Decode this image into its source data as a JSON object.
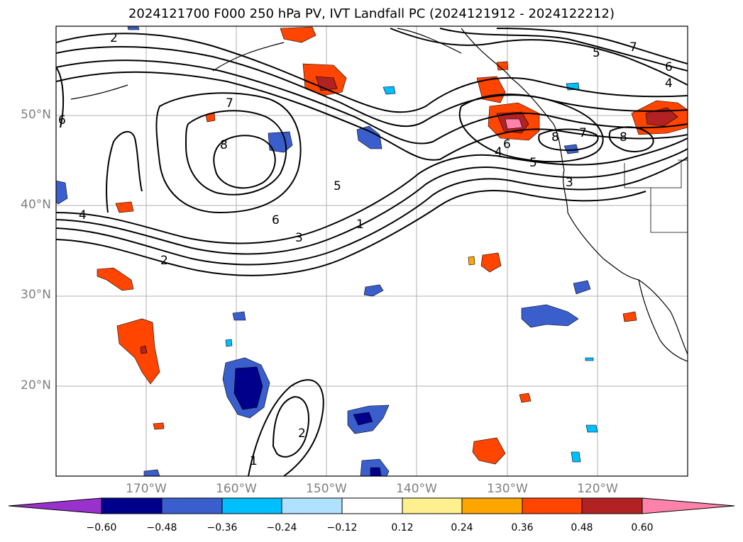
{
  "title": "2024121700 F000 250 hPa PV, IVT Landfall PC (2024121912 - 2024122212)",
  "map": {
    "lat_labels": [
      "50°N",
      "40°N",
      "30°N",
      "20°N"
    ],
    "lon_labels": [
      "170°W",
      "160°W",
      "150°W",
      "140°W",
      "130°W",
      "120°W"
    ],
    "contour_labels": [
      "2",
      "6",
      "7",
      "8",
      "5",
      "4",
      "6",
      "3",
      "2",
      "1",
      "5",
      "6",
      "7",
      "4",
      "6",
      "8",
      "7",
      "8",
      "3",
      "4",
      "5",
      "1",
      "2"
    ],
    "grid": true,
    "colors": {
      "contour": "#000000",
      "grid": "#b0b0b0",
      "coast": "#000000"
    }
  },
  "colorbar": {
    "labels": [
      "−0.60",
      "−0.48",
      "−0.36",
      "−0.24",
      "−0.12",
      "0.12",
      "0.24",
      "0.36",
      "0.48",
      "0.60"
    ],
    "colors": [
      "#9932cc",
      "#00008b",
      "#3a5fcd",
      "#00bfff",
      "#b0e2ff",
      "#ffffff",
      "#fff08f",
      "#ffa500",
      "#ff4500",
      "#b22222",
      "#ff82ab"
    ]
  }
}
